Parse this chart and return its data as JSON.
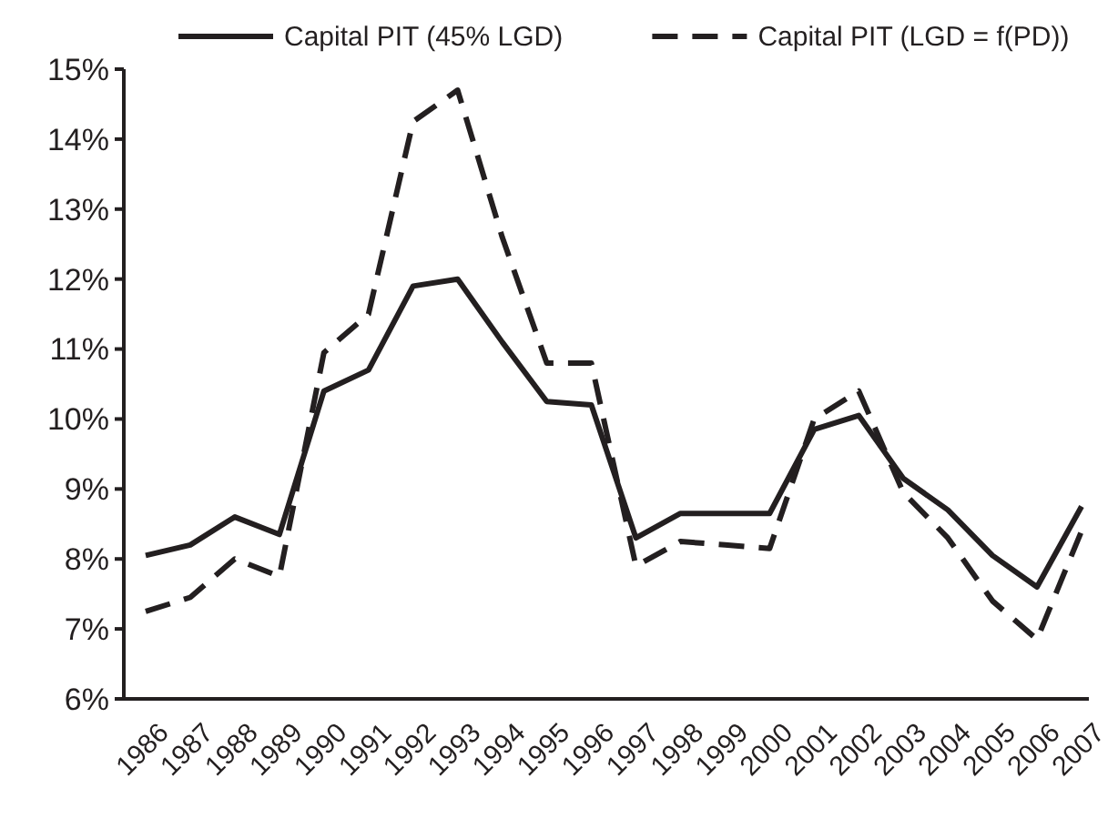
{
  "chart_data": {
    "type": "line",
    "categories": [
      "1986",
      "1987",
      "1988",
      "1989",
      "1990",
      "1991",
      "1992",
      "1993",
      "1994",
      "1995",
      "1996",
      "1997",
      "1998",
      "1999",
      "2000",
      "2001",
      "2002",
      "2003",
      "2004",
      "2005",
      "2006",
      "2007"
    ],
    "series": [
      {
        "name": "Capital PIT (45% LGD)",
        "color": "#231f20",
        "line_style": "solid",
        "values": [
          8.05,
          8.2,
          8.6,
          8.35,
          10.4,
          10.7,
          11.9,
          12.0,
          11.1,
          10.25,
          10.2,
          8.3,
          8.65,
          8.65,
          8.65,
          9.85,
          10.05,
          9.15,
          8.7,
          8.05,
          7.6,
          8.75
        ]
      },
      {
        "name": "Capital PIT (LGD = f(PD))",
        "color": "#231f20",
        "line_style": "dashed",
        "values": [
          7.25,
          7.45,
          8.0,
          7.75,
          10.95,
          11.5,
          14.25,
          14.7,
          12.6,
          10.8,
          10.8,
          7.9,
          8.25,
          8.2,
          8.15,
          10.0,
          10.4,
          8.95,
          8.3,
          7.4,
          6.85,
          8.4
        ]
      }
    ],
    "ylim": [
      6,
      15
    ],
    "yticks": [
      {
        "value": 6,
        "label": "6%"
      },
      {
        "value": 7,
        "label": "7%"
      },
      {
        "value": 8,
        "label": "8%"
      },
      {
        "value": 9,
        "label": "9%"
      },
      {
        "value": 10,
        "label": "10%"
      },
      {
        "value": 11,
        "label": "11%"
      },
      {
        "value": 12,
        "label": "12%"
      },
      {
        "value": 13,
        "label": "13%"
      },
      {
        "value": 14,
        "label": "14%"
      },
      {
        "value": 15,
        "label": "15%"
      }
    ],
    "grid": false,
    "legend": "top",
    "marker": "none"
  }
}
